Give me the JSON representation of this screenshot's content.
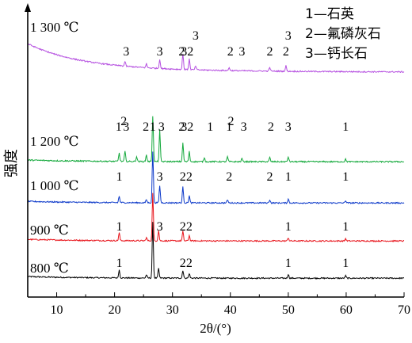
{
  "chart_data": {
    "type": "line",
    "xlabel": "2θ/(°)",
    "ylabel": "强度",
    "xlim": [
      5,
      70
    ],
    "xticks": [
      10,
      20,
      30,
      40,
      50,
      60,
      70
    ],
    "grid": false,
    "legend": {
      "position": "top-right",
      "entries": [
        "1—石英",
        "2—氟磷灰石",
        "3—钙长石"
      ]
    },
    "series": [
      {
        "name": "800 ℃",
        "color": "#000000",
        "peaks": [
          [
            20.8,
            10
          ],
          [
            25.5,
            4
          ],
          [
            26.6,
            70
          ],
          [
            27.6,
            12
          ],
          [
            31.8,
            10
          ],
          [
            32.9,
            6
          ],
          [
            50.0,
            5
          ],
          [
            59.9,
            3
          ]
        ],
        "labels": [
          {
            "text": "1",
            "x": 20.8
          },
          {
            "text": "2",
            "x": 31.8
          },
          {
            "text": "2",
            "x": 32.9
          },
          {
            "text": "1",
            "x": 50.0
          },
          {
            "text": "1",
            "x": 59.9
          }
        ]
      },
      {
        "name": "900 ℃",
        "color": "#e8141b",
        "peaks": [
          [
            20.8,
            10
          ],
          [
            25.5,
            4
          ],
          [
            26.6,
            60
          ],
          [
            27.6,
            13
          ],
          [
            31.8,
            12
          ],
          [
            32.9,
            7
          ],
          [
            50.0,
            4
          ],
          [
            59.9,
            3
          ]
        ],
        "labels": [
          {
            "text": "1",
            "x": 20.8
          },
          {
            "text": "3",
            "x": 27.8
          },
          {
            "text": "2",
            "x": 31.8
          },
          {
            "text": "2",
            "x": 32.9
          },
          {
            "text": "1",
            "x": 50.0
          },
          {
            "text": "1",
            "x": 59.9
          }
        ]
      },
      {
        "name": "1 000 ℃",
        "color": "#0b38c9",
        "peaks": [
          [
            20.8,
            8
          ],
          [
            25.5,
            4
          ],
          [
            26.6,
            65
          ],
          [
            27.8,
            22
          ],
          [
            31.8,
            20
          ],
          [
            32.9,
            9
          ],
          [
            39.5,
            4
          ],
          [
            46.8,
            4
          ],
          [
            50.0,
            5
          ],
          [
            59.9,
            3
          ]
        ],
        "labels": [
          {
            "text": "1",
            "x": 20.8
          },
          {
            "text": "3",
            "x": 27.8
          },
          {
            "text": "2",
            "x": 31.8
          },
          {
            "text": "2",
            "x": 32.9
          },
          {
            "text": "2",
            "x": 39.8
          },
          {
            "text": "2",
            "x": 46.8
          },
          {
            "text": "1",
            "x": 50.0
          },
          {
            "text": "1",
            "x": 59.9
          }
        ]
      },
      {
        "name": "1 200 ℃",
        "color": "#12a83a",
        "peaks": [
          [
            20.8,
            10
          ],
          [
            21.8,
            12
          ],
          [
            23.8,
            6
          ],
          [
            25.5,
            8
          ],
          [
            26.6,
            55
          ],
          [
            27.8,
            38
          ],
          [
            31.8,
            22
          ],
          [
            32.9,
            12
          ],
          [
            35.5,
            5
          ],
          [
            39.5,
            6
          ],
          [
            42.0,
            4
          ],
          [
            46.8,
            5
          ],
          [
            50.0,
            6
          ],
          [
            59.9,
            3
          ]
        ],
        "labels": [
          {
            "text": "1",
            "x": 20.7
          },
          {
            "text": "2",
            "x": 21.6
          },
          {
            "text": "3",
            "x": 22.0
          },
          {
            "text": "2",
            "x": 25.4
          },
          {
            "text": "1",
            "x": 26.6
          },
          {
            "text": "3",
            "x": 28.1
          },
          {
            "text": "2",
            "x": 31.6
          },
          {
            "text": "3",
            "x": 32.0
          },
          {
            "text": "2",
            "x": 33.1
          },
          {
            "text": "1",
            "x": 36.5
          },
          {
            "text": "1",
            "x": 39.8
          },
          {
            "text": "2",
            "x": 40.1
          },
          {
            "text": "3",
            "x": 42.3
          },
          {
            "text": "2",
            "x": 47.0
          },
          {
            "text": "3",
            "x": 50.0
          },
          {
            "text": "1",
            "x": 59.9
          }
        ]
      },
      {
        "name": "1 300 ℃",
        "color": "#b54fe0",
        "peaks": [
          [
            21.8,
            6
          ],
          [
            25.5,
            5
          ],
          [
            27.8,
            12
          ],
          [
            31.8,
            20
          ],
          [
            32.9,
            14
          ],
          [
            34.0,
            5
          ],
          [
            39.8,
            4
          ],
          [
            46.8,
            5
          ],
          [
            49.6,
            7
          ]
        ],
        "labels": [
          {
            "text": "3",
            "x": 22.0
          },
          {
            "text": "3",
            "x": 27.8
          },
          {
            "text": "2",
            "x": 31.6
          },
          {
            "text": "3",
            "x": 32.0
          },
          {
            "text": "2",
            "x": 33.1
          },
          {
            "text": "3",
            "x": 34.0
          },
          {
            "text": "2",
            "x": 40.0
          },
          {
            "text": "3",
            "x": 42.0
          },
          {
            "text": "2",
            "x": 46.8
          },
          {
            "text": "2",
            "x": 49.6
          },
          {
            "text": "3",
            "x": 50.0
          }
        ]
      }
    ]
  }
}
